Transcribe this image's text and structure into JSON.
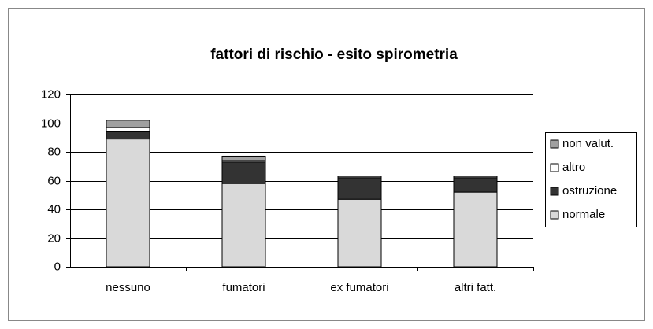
{
  "chart_data": {
    "type": "stacked_bar",
    "title": "fattori di rischio - esito spirometria",
    "categories": [
      "nessuno",
      "fumatori",
      "ex fumatori",
      "altri fatt."
    ],
    "series": [
      {
        "name": "normale",
        "color": "#d9d9d9",
        "values": [
          89,
          58,
          47,
          52
        ]
      },
      {
        "name": "ostruzione",
        "color": "#333333",
        "values": [
          5,
          15,
          15,
          10
        ]
      },
      {
        "name": "altro",
        "color": "#ffffff",
        "values": [
          3,
          1,
          0,
          0
        ]
      },
      {
        "name": "non valut.",
        "color": "#a0a0a0",
        "values": [
          5,
          3,
          1,
          1
        ]
      }
    ],
    "ylim": [
      0,
      120
    ],
    "yticks": [
      0,
      20,
      40,
      60,
      80,
      100,
      120
    ],
    "grid": true,
    "legend": "right"
  }
}
